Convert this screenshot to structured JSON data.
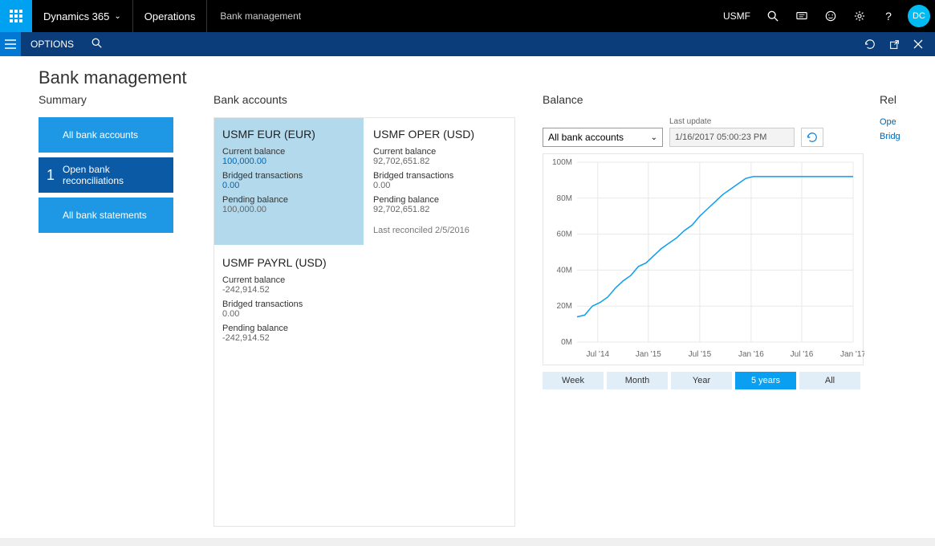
{
  "topbar": {
    "brand": "Dynamics 365",
    "module": "Operations",
    "breadcrumb": "Bank management",
    "company": "USMF",
    "avatar": "DC"
  },
  "subbar": {
    "options": "OPTIONS"
  },
  "page": {
    "title": "Bank management"
  },
  "summary": {
    "title": "Summary",
    "tiles": [
      {
        "label": "All bank accounts"
      },
      {
        "label": "Open bank reconciliations",
        "count": "1"
      },
      {
        "label": "All bank statements"
      }
    ]
  },
  "accounts": {
    "title": "Bank accounts",
    "cards": [
      {
        "title": "USMF EUR (EUR)",
        "selected": true,
        "current_label": "Current balance",
        "current_value": "100,000.00",
        "bridged_label": "Bridged transactions",
        "bridged_value": "0.00",
        "pending_label": "Pending balance",
        "pending_value": "100,000.00",
        "footer": ""
      },
      {
        "title": "USMF OPER (USD)",
        "selected": false,
        "current_label": "Current balance",
        "current_value": "92,702,651.82",
        "bridged_label": "Bridged transactions",
        "bridged_value": "0.00",
        "pending_label": "Pending balance",
        "pending_value": "92,702,651.82",
        "footer": "Last reconciled 2/5/2016"
      },
      {
        "title": "USMF PAYRL (USD)",
        "selected": false,
        "current_label": "Current balance",
        "current_value": "-242,914.52",
        "bridged_label": "Bridged transactions",
        "bridged_value": "0.00",
        "pending_label": "Pending balance",
        "pending_value": "-242,914.52",
        "footer": ""
      }
    ]
  },
  "balance": {
    "title": "Balance",
    "dropdown_label": "All bank accounts",
    "last_update_label": "Last update",
    "timestamp": "1/16/2017 05:00:23 PM",
    "periods": [
      {
        "label": "Week",
        "active": false
      },
      {
        "label": "Month",
        "active": false
      },
      {
        "label": "Year",
        "active": false
      },
      {
        "label": "5 years",
        "active": true
      },
      {
        "label": "All",
        "active": false
      }
    ],
    "chart": {
      "type": "line",
      "line_color": "#0a9ff0",
      "line_width": 1.5,
      "background_color": "#ffffff",
      "grid_color": "#e8e8e8",
      "axis_font_size": 10,
      "axis_color": "#666666",
      "ylim": [
        0,
        100
      ],
      "ytick_step": 20,
      "y_unit": "M",
      "x_labels": [
        "Jul '14",
        "Jan '15",
        "Jul '15",
        "Jan '16",
        "Jul '16",
        "Jan '17"
      ],
      "x_positions": [
        47,
        113,
        180,
        247,
        313,
        380
      ],
      "points": [
        [
          20,
          14
        ],
        [
          30,
          15
        ],
        [
          40,
          20
        ],
        [
          50,
          22
        ],
        [
          60,
          25
        ],
        [
          70,
          30
        ],
        [
          80,
          34
        ],
        [
          90,
          37
        ],
        [
          100,
          42
        ],
        [
          110,
          44
        ],
        [
          120,
          48
        ],
        [
          130,
          52
        ],
        [
          140,
          55
        ],
        [
          150,
          58
        ],
        [
          160,
          62
        ],
        [
          170,
          65
        ],
        [
          180,
          70
        ],
        [
          190,
          74
        ],
        [
          200,
          78
        ],
        [
          210,
          82
        ],
        [
          220,
          85
        ],
        [
          230,
          88
        ],
        [
          240,
          91
        ],
        [
          250,
          92
        ],
        [
          260,
          92
        ],
        [
          270,
          92
        ],
        [
          280,
          92
        ],
        [
          290,
          92
        ],
        [
          300,
          92
        ],
        [
          310,
          92
        ],
        [
          320,
          92
        ],
        [
          330,
          92
        ],
        [
          340,
          92
        ],
        [
          350,
          92
        ],
        [
          360,
          92
        ],
        [
          370,
          92
        ],
        [
          380,
          92
        ]
      ]
    }
  },
  "related": {
    "title": "Rel",
    "links": [
      "Ope",
      "Bridg"
    ]
  }
}
